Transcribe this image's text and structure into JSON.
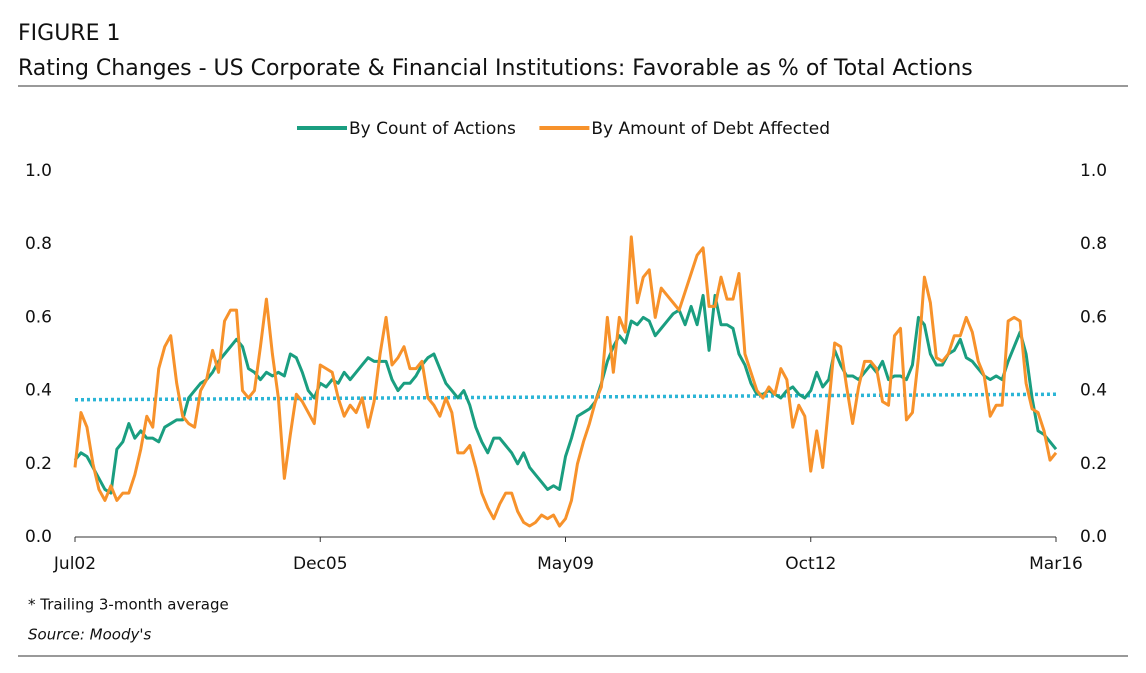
{
  "chart_data": {
    "type": "line",
    "figure_label": "FIGURE 1",
    "title": "Rating Changes - US Corporate & Financial Institutions: Favorable as % of Total Actions",
    "footnote": "* Trailing 3-month  average",
    "source": "Source: Moody's",
    "categories": [
      "Jul02",
      null,
      null,
      null,
      null,
      null,
      null,
      null,
      null,
      null,
      null,
      null,
      null,
      null,
      null,
      null,
      null,
      null,
      null,
      null,
      null,
      null,
      null,
      null,
      null,
      null,
      null,
      null,
      null,
      null,
      null,
      null,
      null,
      null,
      null,
      null,
      null,
      null,
      null,
      null,
      null,
      "Dec05",
      null,
      null,
      null,
      null,
      null,
      null,
      null,
      null,
      null,
      null,
      null,
      null,
      null,
      null,
      null,
      null,
      null,
      null,
      null,
      null,
      null,
      null,
      null,
      null,
      null,
      null,
      null,
      null,
      null,
      null,
      null,
      null,
      null,
      null,
      null,
      null,
      null,
      null,
      null,
      null,
      "May09",
      null,
      null,
      null,
      null,
      null,
      null,
      null,
      null,
      null,
      null,
      null,
      null,
      null,
      null,
      null,
      null,
      null,
      null,
      null,
      null,
      null,
      null,
      null,
      null,
      null,
      null,
      null,
      null,
      null,
      null,
      null,
      null,
      null,
      null,
      null,
      null,
      null,
      null,
      null,
      null,
      "Oct12",
      null,
      null,
      null,
      null,
      null,
      null,
      null,
      null,
      null,
      null,
      null,
      null,
      null,
      null,
      null,
      null,
      null,
      null,
      null,
      null,
      null,
      null,
      null,
      null,
      null,
      null,
      null,
      null,
      null,
      null,
      null,
      null,
      null,
      null,
      null,
      null,
      null,
      null,
      null,
      null,
      "Mar16"
    ],
    "series": [
      {
        "name": "By Count of Actions",
        "color": "#1a9e80",
        "values": [
          0.21,
          0.23,
          0.22,
          0.19,
          0.16,
          0.13,
          0.12,
          0.24,
          0.26,
          0.31,
          0.27,
          0.29,
          0.27,
          0.27,
          0.26,
          0.3,
          0.31,
          0.32,
          0.32,
          0.38,
          0.4,
          0.42,
          0.43,
          0.45,
          0.48,
          0.5,
          0.52,
          0.54,
          0.52,
          0.46,
          0.45,
          0.43,
          0.45,
          0.44,
          0.45,
          0.44,
          0.5,
          0.49,
          0.45,
          0.4,
          0.38,
          0.42,
          0.41,
          0.43,
          0.42,
          0.45,
          0.43,
          0.45,
          0.47,
          0.49,
          0.48,
          0.48,
          0.48,
          0.43,
          0.4,
          0.42,
          0.42,
          0.44,
          0.47,
          0.49,
          0.5,
          0.46,
          0.42,
          0.4,
          0.38,
          0.4,
          0.36,
          0.3,
          0.26,
          0.23,
          0.27,
          0.27,
          0.25,
          0.23,
          0.2,
          0.23,
          0.19,
          0.17,
          0.15,
          0.13,
          0.14,
          0.13,
          0.22,
          0.27,
          0.33,
          0.34,
          0.35,
          0.37,
          0.42,
          0.48,
          0.52,
          0.55,
          0.53,
          0.59,
          0.58,
          0.6,
          0.59,
          0.55,
          0.57,
          0.59,
          0.61,
          0.62,
          0.58,
          0.63,
          0.58,
          0.66,
          0.51,
          0.66,
          0.58,
          0.58,
          0.57,
          0.5,
          0.47,
          0.42,
          0.39,
          0.39,
          0.4,
          0.39,
          0.38,
          0.4,
          0.41,
          0.39,
          0.38,
          0.4,
          0.45,
          0.41,
          0.43,
          0.51,
          0.47,
          0.44,
          0.44,
          0.43,
          0.45,
          0.47,
          0.45,
          0.48,
          0.43,
          0.44,
          0.44,
          0.43,
          0.47,
          0.6,
          0.58,
          0.5,
          0.47,
          0.47,
          0.5,
          0.51,
          0.54,
          0.49,
          0.48,
          0.46,
          0.44,
          0.43,
          0.44,
          0.43,
          0.48,
          0.52,
          0.56,
          0.5,
          0.38,
          0.29,
          0.28,
          0.26,
          0.24
        ]
      },
      {
        "name": "By Amount of Debt Affected",
        "color": "#f7922b",
        "values": [
          0.19,
          0.34,
          0.3,
          0.2,
          0.13,
          0.1,
          0.14,
          0.1,
          0.12,
          0.12,
          0.17,
          0.24,
          0.33,
          0.3,
          0.46,
          0.52,
          0.55,
          0.42,
          0.33,
          0.31,
          0.3,
          0.4,
          0.43,
          0.51,
          0.45,
          0.59,
          0.62,
          0.62,
          0.4,
          0.38,
          0.4,
          0.52,
          0.65,
          0.5,
          0.38,
          0.16,
          0.28,
          0.39,
          0.37,
          0.34,
          0.31,
          0.47,
          0.46,
          0.45,
          0.38,
          0.33,
          0.36,
          0.34,
          0.38,
          0.3,
          0.37,
          0.5,
          0.6,
          0.47,
          0.49,
          0.52,
          0.46,
          0.46,
          0.48,
          0.38,
          0.36,
          0.33,
          0.38,
          0.34,
          0.23,
          0.23,
          0.25,
          0.19,
          0.12,
          0.08,
          0.05,
          0.09,
          0.12,
          0.12,
          0.07,
          0.04,
          0.03,
          0.04,
          0.06,
          0.05,
          0.06,
          0.03,
          0.05,
          0.1,
          0.2,
          0.26,
          0.31,
          0.37,
          0.41,
          0.6,
          0.45,
          0.6,
          0.56,
          0.82,
          0.64,
          0.71,
          0.73,
          0.6,
          0.68,
          0.66,
          0.64,
          0.62,
          0.67,
          0.72,
          0.77,
          0.79,
          0.63,
          0.63,
          0.71,
          0.65,
          0.65,
          0.72,
          0.5,
          0.45,
          0.4,
          0.38,
          0.41,
          0.39,
          0.46,
          0.43,
          0.3,
          0.36,
          0.33,
          0.18,
          0.29,
          0.19,
          0.36,
          0.53,
          0.52,
          0.41,
          0.31,
          0.41,
          0.48,
          0.48,
          0.46,
          0.37,
          0.36,
          0.55,
          0.57,
          0.32,
          0.34,
          0.49,
          0.71,
          0.64,
          0.49,
          0.48,
          0.5,
          0.55,
          0.55,
          0.6,
          0.56,
          0.48,
          0.44,
          0.33,
          0.36,
          0.36,
          0.59,
          0.6,
          0.59,
          0.42,
          0.35,
          0.34,
          0.29,
          0.21,
          0.23
        ]
      }
    ],
    "reference_line": {
      "color": "#2bb5d6",
      "style": "dotted",
      "values": [
        0.375,
        0.39
      ]
    },
    "ylim": [
      0,
      1
    ],
    "yticks": [
      {
        "value": 0,
        "label": "0.0"
      },
      0.2,
      0.4,
      0.6,
      0.8,
      {
        "value": 1,
        "label": "1.0"
      }
    ],
    "y2lim": [
      0,
      1
    ],
    "y2ticks": [
      {
        "value": 0,
        "label": "0.0"
      },
      0.2,
      0.4,
      0.6,
      0.8,
      {
        "value": 1,
        "label": "1.0"
      }
    ],
    "grid": false,
    "legend": "top"
  }
}
